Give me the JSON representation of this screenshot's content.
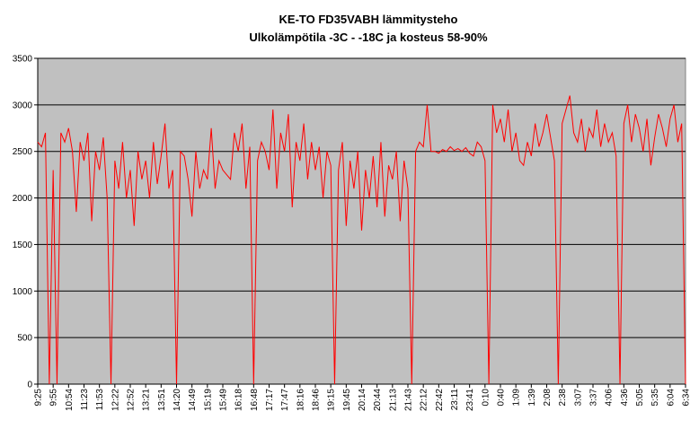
{
  "chart_data": {
    "type": "line",
    "title": "KE-TO FD35VABH lämmitysteho",
    "subtitle": "Ulkolämpötila  -3C - -18C ja kosteus 58-90%",
    "categories": [
      "9:25",
      null,
      null,
      null,
      "9:55",
      null,
      null,
      null,
      "10:54",
      null,
      null,
      null,
      "11:23",
      null,
      null,
      null,
      "11:53",
      null,
      null,
      null,
      "12:22",
      null,
      null,
      null,
      "12:52",
      null,
      null,
      null,
      "13:21",
      null,
      null,
      null,
      "13:51",
      null,
      null,
      null,
      "14:20",
      null,
      null,
      null,
      "14:49",
      null,
      null,
      null,
      "15:19",
      null,
      null,
      null,
      "15:49",
      null,
      null,
      null,
      "16:18",
      null,
      null,
      null,
      "16:48",
      null,
      null,
      null,
      "17:17",
      null,
      null,
      null,
      "17:47",
      null,
      null,
      null,
      "18:16",
      null,
      null,
      null,
      "18:46",
      null,
      null,
      null,
      "19:15",
      null,
      null,
      null,
      "19:45",
      null,
      null,
      null,
      "20:14",
      null,
      null,
      null,
      "20:44",
      null,
      null,
      null,
      "21:13",
      null,
      null,
      null,
      "21:43",
      null,
      null,
      null,
      "22:12",
      null,
      null,
      null,
      "22:42",
      null,
      null,
      null,
      "23:11",
      null,
      null,
      null,
      "23:41",
      null,
      null,
      null,
      "0:10",
      null,
      null,
      null,
      "0:40",
      null,
      null,
      null,
      "1:09",
      null,
      null,
      null,
      "1:39",
      null,
      null,
      null,
      "2:08",
      null,
      null,
      null,
      "2:38",
      null,
      null,
      null,
      "3:07",
      null,
      null,
      null,
      "3:37",
      null,
      null,
      null,
      "4:06",
      null,
      null,
      null,
      "4:36",
      null,
      null,
      null,
      "5:05",
      null,
      null,
      null,
      "5:35",
      null,
      null,
      null,
      "6:04",
      null,
      null,
      null,
      "6:34"
    ],
    "series": [
      {
        "name": "lämmitysteho",
        "color": "#ff0000",
        "values": [
          2600,
          2550,
          2700,
          0,
          2300,
          0,
          2700,
          2600,
          2750,
          2500,
          1850,
          2600,
          2400,
          2700,
          1750,
          2500,
          2300,
          2650,
          2000,
          0,
          2400,
          2100,
          2600,
          2000,
          2300,
          1700,
          2500,
          2200,
          2400,
          2000,
          2600,
          2150,
          2450,
          2800,
          2100,
          2300,
          0,
          2500,
          2450,
          2200,
          1800,
          2500,
          2100,
          2300,
          2200,
          2750,
          2100,
          2400,
          2300,
          2250,
          2200,
          2700,
          2500,
          2800,
          2100,
          2550,
          0,
          2400,
          2600,
          2500,
          2300,
          2950,
          2100,
          2700,
          2500,
          2900,
          1900,
          2600,
          2400,
          2800,
          2200,
          2600,
          2300,
          2550,
          2000,
          2500,
          2350,
          0,
          2300,
          2600,
          1700,
          2400,
          2100,
          2500,
          1650,
          2300,
          2000,
          2450,
          1900,
          2600,
          1800,
          2350,
          2200,
          2500,
          1750,
          2400,
          2100,
          0,
          2500,
          2600,
          2550,
          3000,
          2500,
          2500,
          2480,
          2520,
          2500,
          2550,
          2510,
          2530,
          2500,
          2540,
          2480,
          2450,
          2600,
          2550,
          2400,
          0,
          3000,
          2700,
          2850,
          2600,
          2950,
          2500,
          2700,
          2400,
          2350,
          2600,
          2450,
          2800,
          2550,
          2700,
          2900,
          2650,
          2400,
          0,
          2800,
          2950,
          3100,
          2700,
          2600,
          2850,
          2500,
          2750,
          2650,
          2950,
          2550,
          2800,
          2600,
          2700,
          2450,
          0,
          2800,
          3000,
          2600,
          2900,
          2750,
          2500,
          2850,
          2350,
          2650,
          2900,
          2750,
          2550,
          2850,
          3000,
          2600,
          2800,
          0
        ]
      }
    ],
    "ylim": [
      0,
      3500
    ],
    "yticks": [
      0,
      500,
      1000,
      1500,
      2000,
      2500,
      3000,
      3500
    ],
    "grid": true,
    "plot_background": "#c0c0c0"
  }
}
